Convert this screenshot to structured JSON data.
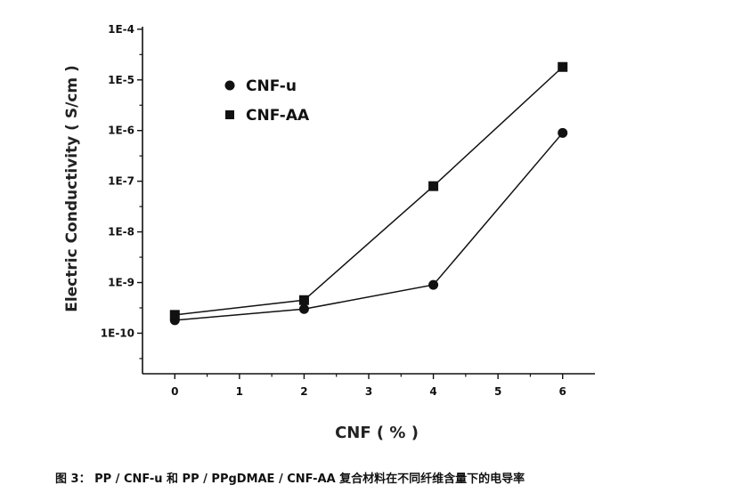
{
  "caption": "图 3： PP / CNF-u 和 PP / PPgDMAE / CNF-AA 复合材料在不同纤维含量下的电导率",
  "chart_data": {
    "type": "line",
    "xlabel": "CNF ( % )",
    "ylabel": "Electric Conductivity ( S/cm )",
    "x_ticks": [
      "0",
      "1",
      "2",
      "3",
      "4",
      "5",
      "6"
    ],
    "y_ticks": [
      "1E-10",
      "1E-9",
      "1E-8",
      "1E-7",
      "1E-6",
      "1E-5",
      "1E-4"
    ],
    "xlim": [
      -0.5,
      6.5
    ],
    "ylim_log10": [
      -10.8,
      -3.95
    ],
    "yscale": "log",
    "grid": false,
    "legend_position": "top-left",
    "series": [
      {
        "name": "CNF-u",
        "marker": "circle",
        "color": "#111111",
        "x": [
          0,
          2,
          4,
          6
        ],
        "y": [
          1.8e-10,
          3e-10,
          9e-10,
          9e-07
        ]
      },
      {
        "name": "CNF-AA",
        "marker": "square",
        "color": "#111111",
        "x": [
          0,
          2,
          4,
          6
        ],
        "y": [
          2.3e-10,
          4.5e-10,
          8e-08,
          1.8e-05
        ]
      }
    ]
  }
}
